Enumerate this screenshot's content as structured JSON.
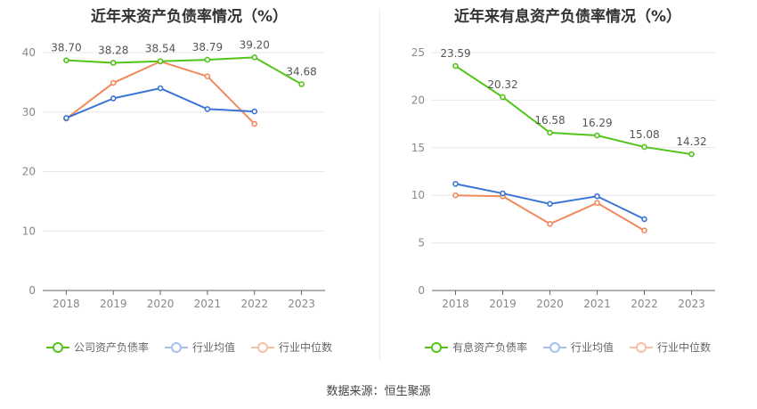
{
  "charts": [
    {
      "title": "近年来资产负债率情况（%）",
      "legend": [
        "公司资产负债率",
        "行业均值",
        "行业中位数"
      ]
    },
    {
      "title": "近年来有息资产负债率情况（%）",
      "legend": [
        "有息资产负债率",
        "行业均值",
        "行业中位数"
      ]
    }
  ],
  "source": "数据来源：恒生聚源",
  "colors": {
    "company": "#52c41a",
    "mean": "#3a75d6",
    "median": "#f08a5d"
  },
  "chart_data": [
    {
      "type": "line",
      "title": "近年来资产负债率情况（%）",
      "categories": [
        "2018",
        "2019",
        "2020",
        "2021",
        "2022",
        "2023"
      ],
      "ylim": [
        0,
        40
      ],
      "yticks": [
        "0",
        "10",
        "20",
        "30",
        "40"
      ],
      "series": [
        {
          "name": "公司资产负债率",
          "values": [
            38.7,
            38.28,
            38.54,
            38.79,
            39.2,
            34.68
          ],
          "labels": [
            "38.70",
            "38.28",
            "38.54",
            "38.79",
            "39.20",
            "34.68"
          ]
        },
        {
          "name": "行业均值",
          "values": [
            29.0,
            32.3,
            34.0,
            30.5,
            30.1,
            null
          ]
        },
        {
          "name": "行业中位数",
          "values": [
            28.9,
            34.9,
            38.5,
            36.0,
            28.0,
            null
          ]
        }
      ]
    },
    {
      "type": "line",
      "title": "近年来有息资产负债率情况（%）",
      "categories": [
        "2018",
        "2019",
        "2020",
        "2021",
        "2022",
        "2023"
      ],
      "ylim": [
        0,
        25
      ],
      "yticks": [
        "0",
        "5",
        "10",
        "15",
        "20",
        "25"
      ],
      "series": [
        {
          "name": "有息资产负债率",
          "values": [
            23.59,
            20.32,
            16.58,
            16.29,
            15.08,
            14.32
          ],
          "labels": [
            "23.59",
            "20.32",
            "16.58",
            "16.29",
            "15.08",
            "14.32"
          ]
        },
        {
          "name": "行业均值",
          "values": [
            11.2,
            10.2,
            9.1,
            9.9,
            7.5,
            null
          ]
        },
        {
          "name": "行业中位数",
          "values": [
            10.0,
            9.9,
            7.0,
            9.2,
            6.3,
            null
          ]
        }
      ]
    }
  ]
}
